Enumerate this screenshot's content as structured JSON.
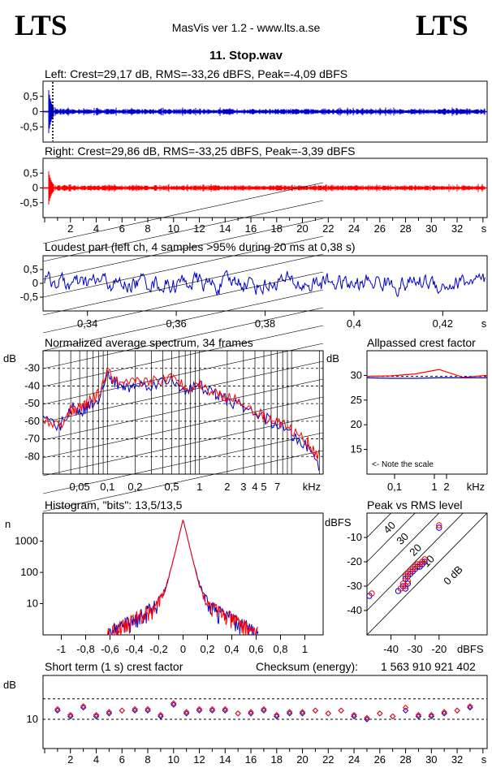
{
  "header": {
    "logo_left": "LTS",
    "logo_right": "LTS",
    "app": "MasVis ver 1.2 - www.lts.a.se",
    "file": "11. Stop.wav"
  },
  "colors": {
    "left": "#0000cc",
    "right": "#ff0000",
    "frame": "#000000"
  },
  "chart_data": [
    {
      "type": "line",
      "id": "left-waveform",
      "title": "Left: Crest=29,17 dB, RMS=-33,26 dBFS, Peak=-4,09 dBFS",
      "ylim": [
        -1,
        1
      ],
      "yticks": [
        "0,5",
        "0",
        "-0,5"
      ],
      "xlim": [
        0,
        34.2
      ],
      "markers_s": [
        0.36,
        0.4
      ],
      "series": [
        {
          "values_approx": "envelope ±0.6 at 0.3–0.6 s, then ±0.05–0.12 noise to 34 s"
        }
      ]
    },
    {
      "type": "line",
      "id": "right-waveform",
      "title": "Right: Crest=29,86 dB, RMS=-33,25 dBFS, Peak=-3,39 dBFS",
      "ylim": [
        -1,
        1
      ],
      "yticks": [
        "0,5",
        "0",
        "-0,5"
      ],
      "xlim": [
        0,
        34.2
      ],
      "xticks": [
        "2",
        "4",
        "6",
        "8",
        "10",
        "12",
        "14",
        "16",
        "18",
        "20",
        "22",
        "24",
        "26",
        "28",
        "30",
        "32",
        "s"
      ]
    },
    {
      "type": "line",
      "id": "loudest-part",
      "title": "Loudest part (left  ch, 4 samples >95% during 20 ms at 0,38 s)",
      "xlim": [
        0.33,
        0.43
      ],
      "ylim": [
        -1,
        1
      ],
      "yticks": [
        "0,5",
        "0",
        "-0,5"
      ],
      "xticks": [
        "0,34",
        "0,36",
        "0,38",
        "0,4",
        "0,42",
        "s"
      ]
    },
    {
      "type": "line",
      "id": "avg-spectrum",
      "title": "Normalized average spectrum, 34 frames",
      "ylabel": "dB",
      "ylim": [
        -90,
        -20
      ],
      "yticks": [
        "-30",
        "-40",
        "-50",
        "-60",
        "-70",
        "-80"
      ],
      "xticks": [
        "0,05",
        "0,1",
        "0,2",
        "0,5",
        "1",
        "2",
        "3",
        "4",
        "5",
        "7",
        "kHz"
      ],
      "series": [
        {
          "name": "left",
          "x_khz": [
            0.02,
            0.03,
            0.04,
            0.05,
            0.06,
            0.08,
            0.1,
            0.12,
            0.15,
            0.2,
            0.3,
            0.5,
            0.7,
            1,
            1.5,
            2,
            3,
            5,
            7,
            10,
            15,
            20
          ],
          "values": [
            -58,
            -64,
            -52,
            -55,
            -52,
            -47,
            -34,
            -38,
            -41,
            -40,
            -39,
            -37,
            -42,
            -40,
            -45,
            -48,
            -52,
            -58,
            -62,
            -68,
            -75,
            -85
          ]
        },
        {
          "name": "right",
          "x_khz": [
            0.02,
            0.03,
            0.04,
            0.05,
            0.06,
            0.08,
            0.1,
            0.12,
            0.15,
            0.2,
            0.3,
            0.5,
            0.7,
            1,
            1.5,
            2,
            3,
            5,
            7,
            10,
            15,
            20
          ],
          "values": [
            -60,
            -62,
            -54,
            -53,
            -50,
            -45,
            -32,
            -37,
            -40,
            -38,
            -37,
            -36,
            -40,
            -39,
            -44,
            -46,
            -50,
            -57,
            -60,
            -65,
            -72,
            -80
          ]
        }
      ]
    },
    {
      "type": "line",
      "id": "allpassed-crest",
      "title": "Allpassed crest factor",
      "ylabel": "dB",
      "ylim": [
        10,
        35
      ],
      "yticks": [
        "30",
        "25",
        "20",
        "15"
      ],
      "xticks": [
        "0,1",
        "1",
        "2",
        "kHz"
      ],
      "note": "<- Note the scale",
      "series": [
        {
          "name": "left",
          "values": [
            29.5,
            29.4,
            29.4,
            29.5,
            29.5,
            29.5
          ]
        },
        {
          "name": "right",
          "values": [
            29.8,
            29.9,
            30.3,
            31.2,
            29.6,
            30.0
          ]
        }
      ]
    },
    {
      "type": "line",
      "id": "histogram",
      "title": "Histogram, \"bits\": 13,5/13,5",
      "ylabel": "n",
      "ytick_labels": [
        "1000",
        "100",
        "10"
      ],
      "xticks": [
        "-1",
        "-0,8",
        "-0,6",
        "-0,4",
        "-0,2",
        "0",
        "0,2",
        "0,4",
        "0,6",
        "0,8",
        "1"
      ]
    },
    {
      "type": "scatter",
      "id": "peak-vs-rms",
      "title": "Peak vs RMS level",
      "ylabel": "dBFS",
      "xlabel": "dBFS",
      "xlim": [
        -50,
        0
      ],
      "ylim": [
        -50,
        0
      ],
      "yticks": [
        "-10",
        "-20",
        "-30",
        "-40"
      ],
      "xticks": [
        "-40",
        "-30",
        "-20"
      ],
      "diag_labels": [
        "40",
        "30",
        "20",
        "10",
        "0 dB"
      ],
      "series": [
        {
          "name": "left",
          "points": [
            [
              -37,
              -32
            ],
            [
              -35,
              -30
            ],
            [
              -34,
              -27
            ],
            [
              -33,
              -26
            ],
            [
              -32,
              -25
            ],
            [
              -31,
              -24
            ],
            [
              -30,
              -23
            ],
            [
              -29,
              -22
            ],
            [
              -28,
              -22
            ],
            [
              -27,
              -21
            ],
            [
              -26,
              -20
            ],
            [
              -34,
              -31
            ],
            [
              -33,
              -29
            ],
            [
              -49,
              -34
            ],
            [
              -20,
              -6
            ]
          ]
        },
        {
          "name": "right",
          "points": [
            [
              -36,
              -31
            ],
            [
              -35,
              -29
            ],
            [
              -34,
              -26
            ],
            [
              -33,
              -25
            ],
            [
              -32,
              -24
            ],
            [
              -31,
              -23
            ],
            [
              -30,
              -22
            ],
            [
              -29,
              -21
            ],
            [
              -28,
              -21
            ],
            [
              -27,
              -20
            ],
            [
              -26,
              -19
            ],
            [
              -34,
              -30
            ],
            [
              -33,
              -28
            ],
            [
              -48,
              -33
            ],
            [
              -20,
              -5
            ]
          ]
        }
      ]
    },
    {
      "type": "scatter",
      "id": "short-term-crest",
      "title": "Short term (1 s) crest factor",
      "ylabel": "dB",
      "yticks": [
        "10"
      ],
      "xticks": [
        "2",
        "4",
        "6",
        "8",
        "10",
        "12",
        "14",
        "16",
        "18",
        "20",
        "22",
        "24",
        "26",
        "28",
        "30",
        "32",
        "s"
      ],
      "xlim": [
        0,
        34.2
      ],
      "ylim": [
        0,
        25
      ],
      "checksum_label": "Checksum (energy):",
      "checksum_value": "1 563 910 921 402",
      "series": [
        {
          "name": "left",
          "values": [
            13,
            11,
            14,
            11,
            12,
            13,
            13,
            13,
            11,
            15,
            12,
            13,
            13,
            13,
            12,
            12,
            13,
            11,
            12,
            12,
            13,
            12,
            13,
            11,
            10,
            12,
            11,
            13,
            11,
            11,
            12,
            13,
            14
          ]
        },
        {
          "name": "right",
          "values": [
            13.5,
            11.5,
            14.5,
            11.5,
            12.5,
            13,
            13.5,
            13.5,
            11.5,
            15.5,
            12.5,
            13.5,
            13.5,
            13.5,
            12,
            12.5,
            13.5,
            11.5,
            12.5,
            12.5,
            13,
            12,
            13,
            11.5,
            10.5,
            12,
            11,
            14,
            11.5,
            11.5,
            12.5,
            13,
            14.5
          ]
        }
      ]
    }
  ]
}
